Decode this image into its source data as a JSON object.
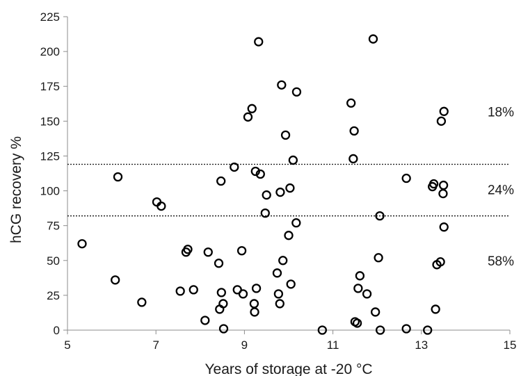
{
  "chart_data": {
    "type": "scatter",
    "title": "",
    "xlabel": "Years of storage at -20 °C",
    "ylabel": "hCG recovery  %",
    "xlim": [
      5,
      15
    ],
    "ylim": [
      0,
      225
    ],
    "xticks": [
      "5",
      "7",
      "9",
      "11",
      "13",
      "15"
    ],
    "yticks": [
      "0",
      "25",
      "50",
      "75",
      "100",
      "125",
      "150",
      "175",
      "200",
      "225"
    ],
    "grid": false,
    "legend": "none",
    "reference_lines": [
      {
        "orientation": "horizontal",
        "y": 119,
        "style": "dotted"
      },
      {
        "orientation": "horizontal",
        "y": 82,
        "style": "dotted"
      }
    ],
    "band_labels": [
      {
        "text": "18%",
        "y": 157
      },
      {
        "text": "24%",
        "y": 101
      },
      {
        "text": "58%",
        "y": 50
      }
    ],
    "marker": {
      "shape": "open-circle",
      "color": "#000000"
    },
    "points": [
      {
        "x": 5.33,
        "y": 62
      },
      {
        "x": 6.08,
        "y": 36
      },
      {
        "x": 6.14,
        "y": 110
      },
      {
        "x": 6.68,
        "y": 20
      },
      {
        "x": 7.02,
        "y": 92
      },
      {
        "x": 7.12,
        "y": 89
      },
      {
        "x": 7.55,
        "y": 28
      },
      {
        "x": 7.68,
        "y": 56
      },
      {
        "x": 7.72,
        "y": 58
      },
      {
        "x": 7.85,
        "y": 29
      },
      {
        "x": 8.11,
        "y": 7
      },
      {
        "x": 8.18,
        "y": 56
      },
      {
        "x": 8.42,
        "y": 48
      },
      {
        "x": 8.44,
        "y": 15
      },
      {
        "x": 8.47,
        "y": 107
      },
      {
        "x": 8.48,
        "y": 27
      },
      {
        "x": 8.52,
        "y": 19
      },
      {
        "x": 8.53,
        "y": 1
      },
      {
        "x": 8.77,
        "y": 117
      },
      {
        "x": 8.84,
        "y": 29
      },
      {
        "x": 8.94,
        "y": 57
      },
      {
        "x": 8.97,
        "y": 26
      },
      {
        "x": 9.08,
        "y": 153
      },
      {
        "x": 9.17,
        "y": 159
      },
      {
        "x": 9.22,
        "y": 19
      },
      {
        "x": 9.23,
        "y": 13
      },
      {
        "x": 9.25,
        "y": 114
      },
      {
        "x": 9.27,
        "y": 30
      },
      {
        "x": 9.32,
        "y": 207
      },
      {
        "x": 9.36,
        "y": 112
      },
      {
        "x": 9.47,
        "y": 84
      },
      {
        "x": 9.5,
        "y": 97
      },
      {
        "x": 9.74,
        "y": 41
      },
      {
        "x": 9.77,
        "y": 26
      },
      {
        "x": 9.8,
        "y": 19
      },
      {
        "x": 9.81,
        "y": 99
      },
      {
        "x": 9.84,
        "y": 176
      },
      {
        "x": 9.87,
        "y": 50
      },
      {
        "x": 9.93,
        "y": 140
      },
      {
        "x": 10.0,
        "y": 68
      },
      {
        "x": 10.03,
        "y": 102
      },
      {
        "x": 10.05,
        "y": 33
      },
      {
        "x": 10.1,
        "y": 122
      },
      {
        "x": 10.17,
        "y": 77
      },
      {
        "x": 10.18,
        "y": 171
      },
      {
        "x": 10.76,
        "y": 0
      },
      {
        "x": 11.41,
        "y": 163
      },
      {
        "x": 11.46,
        "y": 123
      },
      {
        "x": 11.48,
        "y": 143
      },
      {
        "x": 11.5,
        "y": 6
      },
      {
        "x": 11.55,
        "y": 5
      },
      {
        "x": 11.57,
        "y": 30
      },
      {
        "x": 11.61,
        "y": 39
      },
      {
        "x": 11.77,
        "y": 26
      },
      {
        "x": 11.91,
        "y": 209
      },
      {
        "x": 11.96,
        "y": 13
      },
      {
        "x": 12.03,
        "y": 52
      },
      {
        "x": 12.06,
        "y": 82
      },
      {
        "x": 12.07,
        "y": 0
      },
      {
        "x": 12.66,
        "y": 1
      },
      {
        "x": 12.66,
        "y": 109
      },
      {
        "x": 13.14,
        "y": 0
      },
      {
        "x": 13.25,
        "y": 103
      },
      {
        "x": 13.28,
        "y": 105
      },
      {
        "x": 13.32,
        "y": 15
      },
      {
        "x": 13.35,
        "y": 47
      },
      {
        "x": 13.43,
        "y": 49
      },
      {
        "x": 13.45,
        "y": 150
      },
      {
        "x": 13.49,
        "y": 98
      },
      {
        "x": 13.5,
        "y": 104
      },
      {
        "x": 13.51,
        "y": 157
      },
      {
        "x": 13.51,
        "y": 74
      }
    ]
  }
}
